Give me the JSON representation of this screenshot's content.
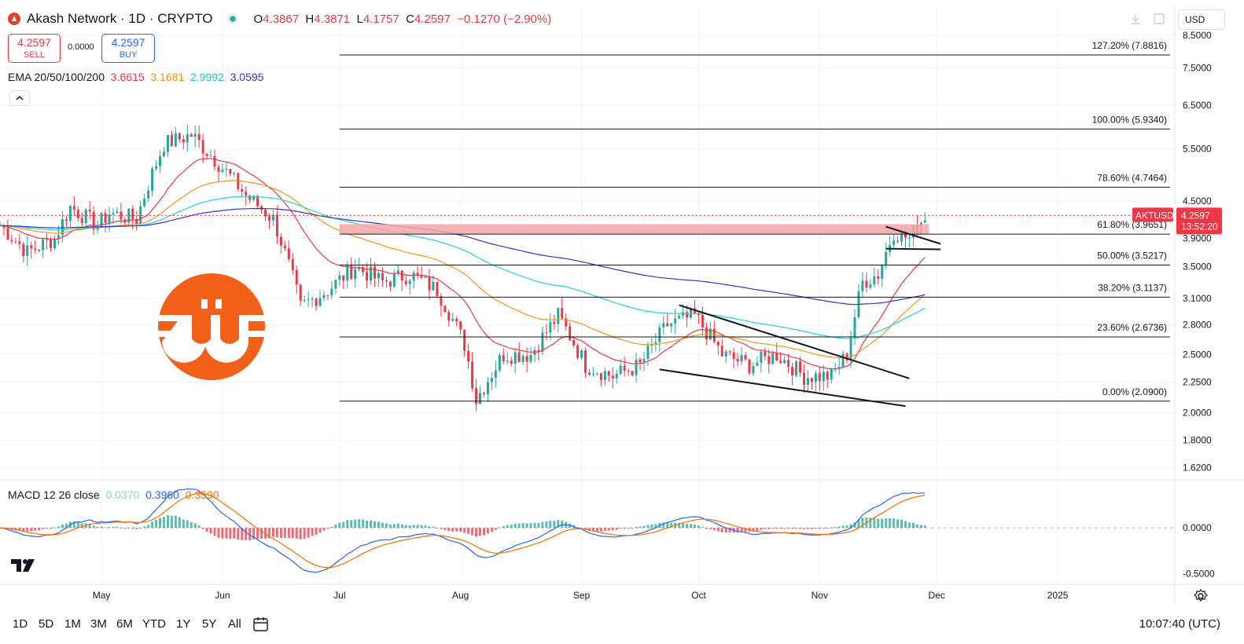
{
  "header": {
    "symbol_title": "Akash Network · 1D · CRYPTO",
    "ohlc": [
      {
        "k": "O",
        "v": "4.3867"
      },
      {
        "k": "H",
        "v": "4.3871"
      },
      {
        "k": "L",
        "v": "4.1757"
      },
      {
        "k": "C",
        "v": "4.2597"
      },
      {
        "k": "",
        "v": "−0.1270 (−2.90%)"
      }
    ],
    "currency": "USD"
  },
  "trade": {
    "sell_price": "4.2597",
    "sell_label": "SELL",
    "spread": "0.0000",
    "buy_price": "4.2597",
    "buy_label": "BUY"
  },
  "ema": {
    "label": "EMA 20/50/100/200",
    "values": [
      "3.6615",
      "3.1681",
      "2.9992",
      "3.0595"
    ],
    "colors": [
      "#f23645",
      "#f7931a",
      "#22d3d3",
      "#3333cc"
    ]
  },
  "macd": {
    "label": "MACD 12 26 close",
    "values": [
      "0.0370",
      "0.3960",
      "0.3590"
    ],
    "colors": [
      "#89d4c8",
      "#2962ff",
      "#ff6d00"
    ],
    "axis": [
      "0.0000",
      "-0.5000"
    ]
  },
  "price_axis": [
    "8.5000",
    "7.5000",
    "6.5000",
    "5.5000",
    "4.5000",
    "3.9000",
    "3.5000",
    "3.1000",
    "2.8000",
    "2.5000",
    "2.2500",
    "2.0000",
    "1.8000",
    "1.6200"
  ],
  "last_price": {
    "symbol": "AKTUSD",
    "price": "4.2597",
    "countdown": "13:52:20"
  },
  "fib_levels": [
    {
      "label": "127.20% (7.8816)",
      "price": 7.8816
    },
    {
      "label": "100.00% (5.9340)",
      "price": 5.934
    },
    {
      "label": "78.60% (4.7464)",
      "price": 4.7464
    },
    {
      "label": "61.80% (3.9651)",
      "price": 3.9651
    },
    {
      "label": "50.00% (3.5217)",
      "price": 3.5217
    },
    {
      "label": "38.20% (3.1137)",
      "price": 3.1137
    },
    {
      "label": "23.60% (2.6736)",
      "price": 2.6736
    },
    {
      "label": "0.00% (2.0900)",
      "price": 2.09
    }
  ],
  "time_axis": [
    "May",
    "Jun",
    "Jul",
    "Aug",
    "Sep",
    "Oct",
    "Nov",
    "Dec",
    "2025"
  ],
  "ranges": [
    "1D",
    "5D",
    "1M",
    "3M",
    "6M",
    "YTD",
    "1Y",
    "5Y",
    "All"
  ],
  "clock": "10:07:40 (UTC)",
  "icons": [
    "akash-logo-icon",
    "market-status-dot-icon",
    "download-icon",
    "fullscreen-icon",
    "collapse-icon",
    "tradingview-logo-icon",
    "calendar-range-icon",
    "settings-icon",
    "watermark-logo-icon"
  ],
  "colors": {
    "up": "#26a69a",
    "down": "#f23645",
    "macd_hist_up": "#26a69a",
    "macd_hist_down": "#f23645",
    "resistance_zone": "#f4a6a6"
  },
  "chart_data": {
    "type": "candlestick",
    "y_scale": "log",
    "ylim": [
      1.55,
      9.5
    ],
    "x_range": [
      "2024-04-05",
      "2025-01-31"
    ],
    "close_path": [
      {
        "date": "2024-04-05",
        "close": 4.1
      },
      {
        "date": "2024-04-12",
        "close": 3.7
      },
      {
        "date": "2024-04-19",
        "close": 3.9
      },
      {
        "date": "2024-04-23",
        "close": 4.4
      },
      {
        "date": "2024-04-30",
        "close": 4.1
      },
      {
        "date": "2024-05-03",
        "close": 4.3
      },
      {
        "date": "2024-05-10",
        "close": 4.2
      },
      {
        "date": "2024-05-17",
        "close": 5.6
      },
      {
        "date": "2024-05-24",
        "close": 5.8
      },
      {
        "date": "2024-05-31",
        "close": 5.2
      },
      {
        "date": "2024-06-07",
        "close": 4.6
      },
      {
        "date": "2024-06-14",
        "close": 4.2
      },
      {
        "date": "2024-06-21",
        "close": 3.0
      },
      {
        "date": "2024-06-28",
        "close": 3.2
      },
      {
        "date": "2024-07-05",
        "close": 3.5
      },
      {
        "date": "2024-07-12",
        "close": 3.3
      },
      {
        "date": "2024-07-19",
        "close": 3.4
      },
      {
        "date": "2024-07-26",
        "close": 3.2
      },
      {
        "date": "2024-08-02",
        "close": 2.6
      },
      {
        "date": "2024-08-05",
        "close": 2.1
      },
      {
        "date": "2024-08-12",
        "close": 2.5
      },
      {
        "date": "2024-08-19",
        "close": 2.5
      },
      {
        "date": "2024-08-26",
        "close": 2.9
      },
      {
        "date": "2024-09-02",
        "close": 2.4
      },
      {
        "date": "2024-09-09",
        "close": 2.3
      },
      {
        "date": "2024-09-16",
        "close": 2.4
      },
      {
        "date": "2024-09-23",
        "close": 2.8
      },
      {
        "date": "2024-09-30",
        "close": 2.9
      },
      {
        "date": "2024-10-07",
        "close": 2.5
      },
      {
        "date": "2024-10-14",
        "close": 2.4
      },
      {
        "date": "2024-10-21",
        "close": 2.5
      },
      {
        "date": "2024-10-28",
        "close": 2.3
      },
      {
        "date": "2024-11-04",
        "close": 2.3
      },
      {
        "date": "2024-11-08",
        "close": 2.5
      },
      {
        "date": "2024-11-12",
        "close": 3.3
      },
      {
        "date": "2024-11-16",
        "close": 3.4
      },
      {
        "date": "2024-11-20",
        "close": 4.0
      },
      {
        "date": "2024-11-24",
        "close": 3.9
      },
      {
        "date": "2024-11-28",
        "close": 4.26
      }
    ],
    "annotations": [
      "Resistance zone near 4.00–4.12",
      "Descending channel Sep–Nov",
      "Triangle / pennant late Nov"
    ]
  }
}
